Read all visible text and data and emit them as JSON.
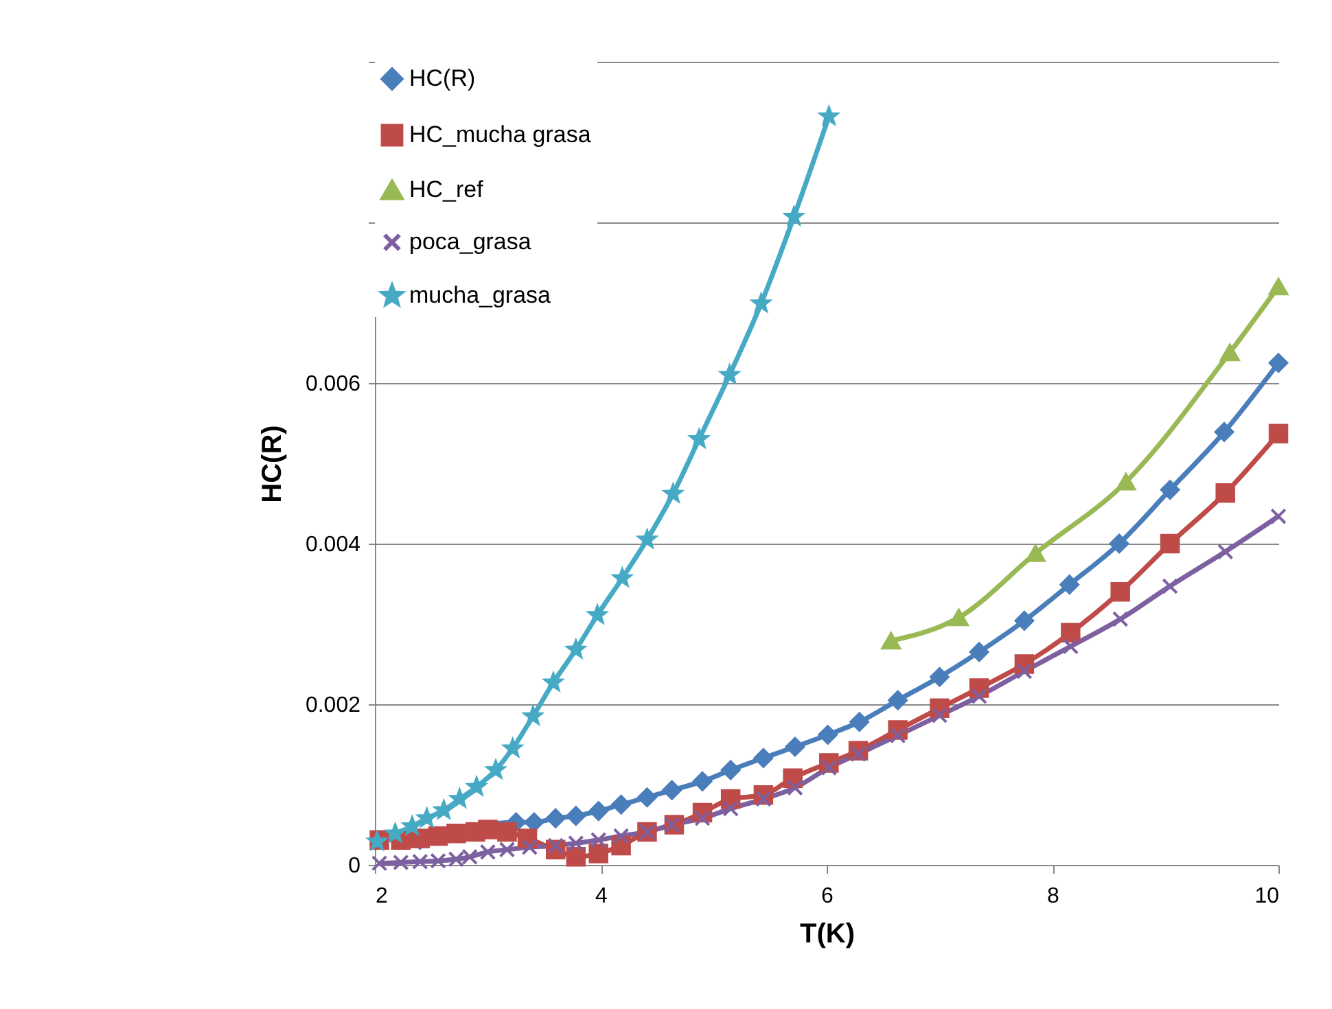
{
  "chart_data": {
    "type": "line",
    "xlabel": "T(K)",
    "ylabel": "HC(R)",
    "xlim": [
      2,
      10
    ],
    "xticks": [
      2,
      4,
      6,
      8,
      10
    ],
    "ylim": [
      0,
      0.01
    ],
    "yticks": [
      0,
      0.002,
      0.004,
      0.006,
      {
        "value": 0.008,
        "label": null
      },
      {
        "value": 0.01,
        "label": null
      }
    ],
    "grid": "y",
    "legend": "top left",
    "line_style": "solid",
    "series": [
      {
        "name": "HC(R)",
        "color": "#4a7ebb",
        "marker": "diamond",
        "x": [
          2.4,
          3.25,
          3.41,
          3.6,
          3.78,
          3.98,
          4.18,
          4.41,
          4.63,
          4.9,
          5.15,
          5.44,
          5.72,
          6.01,
          6.29,
          6.63,
          7.0,
          7.35,
          7.75,
          8.15,
          8.59,
          9.04,
          9.52,
          10.0
        ],
        "values": [
          0.00031,
          0.00053,
          0.00053,
          0.00058,
          0.00061,
          0.00067,
          0.00075,
          0.00084,
          0.00093,
          0.00104,
          0.00118,
          0.00133,
          0.00147,
          0.00162,
          0.00178,
          0.00205,
          0.00234,
          0.00265,
          0.00304,
          0.00349,
          0.004,
          0.00467,
          0.00539,
          0.00625
        ]
      },
      {
        "name": "HC_mucha grasa",
        "color": "#be4b48",
        "marker": "square",
        "x": [
          2.04,
          2.23,
          2.4,
          2.56,
          2.72,
          2.89,
          3.0,
          3.17,
          3.35,
          3.6,
          3.78,
          3.98,
          4.18,
          4.41,
          4.65,
          4.9,
          5.15,
          5.44,
          5.7,
          6.02,
          6.28,
          6.63,
          7.0,
          7.35,
          7.75,
          8.16,
          8.6,
          9.04,
          9.53,
          10.0
        ],
        "values": [
          0.00031,
          0.00031,
          0.00033,
          0.00036,
          0.00039,
          0.00041,
          0.00044,
          0.00041,
          0.00033,
          0.00019,
          0.0001,
          0.00014,
          0.00024,
          0.00041,
          0.0005,
          0.00065,
          0.00082,
          0.00087,
          0.00108,
          0.00127,
          0.00142,
          0.00168,
          0.00195,
          0.0022,
          0.0025,
          0.00289,
          0.0034,
          0.004,
          0.00463,
          0.00537
        ]
      },
      {
        "name": "HC_ref",
        "color": "#98b954",
        "marker": "triangle",
        "x": [
          6.57,
          7.17,
          7.85,
          8.65,
          9.57,
          10.0
        ],
        "values": [
          0.00279,
          0.00308,
          0.00388,
          0.00477,
          0.00638,
          0.0072
        ]
      },
      {
        "name": "poca_grasa",
        "color": "#7d60a0",
        "marker": "cross",
        "x": [
          2.04,
          2.23,
          2.4,
          2.56,
          2.72,
          2.84,
          3.0,
          3.17,
          3.37,
          3.6,
          3.78,
          3.98,
          4.18,
          4.41,
          4.63,
          4.9,
          5.15,
          5.44,
          5.72,
          6.02,
          6.28,
          6.63,
          7.0,
          7.35,
          7.75,
          8.16,
          8.6,
          9.04,
          9.53,
          10.0
        ],
        "values": [
          2e-05,
          3e-05,
          4e-05,
          5e-05,
          7e-05,
          0.0001,
          0.00016,
          0.00019,
          0.00022,
          0.00024,
          0.00027,
          0.00031,
          0.00036,
          0.00041,
          0.0005,
          0.00058,
          0.0007,
          0.00082,
          0.00096,
          0.00121,
          0.00138,
          0.00161,
          0.00186,
          0.0021,
          0.00241,
          0.00272,
          0.00306,
          0.00347,
          0.0039,
          0.00434
        ]
      },
      {
        "name": "mucha_grasa",
        "color": "#46aac5",
        "marker": "star",
        "x": [
          2.02,
          2.18,
          2.33,
          2.46,
          2.61,
          2.75,
          2.9,
          3.07,
          3.22,
          3.4,
          3.58,
          3.78,
          3.97,
          4.19,
          4.41,
          4.64,
          4.87,
          5.14,
          5.42,
          5.71,
          6.02
        ],
        "values": [
          0.00029,
          0.00039,
          0.00048,
          0.00058,
          0.00068,
          0.00082,
          0.00097,
          0.00118,
          0.00145,
          0.00185,
          0.00227,
          0.00268,
          0.00311,
          0.00357,
          0.00405,
          0.00462,
          0.0053,
          0.0061,
          0.00699,
          0.00807,
          0.00932
        ]
      }
    ]
  }
}
